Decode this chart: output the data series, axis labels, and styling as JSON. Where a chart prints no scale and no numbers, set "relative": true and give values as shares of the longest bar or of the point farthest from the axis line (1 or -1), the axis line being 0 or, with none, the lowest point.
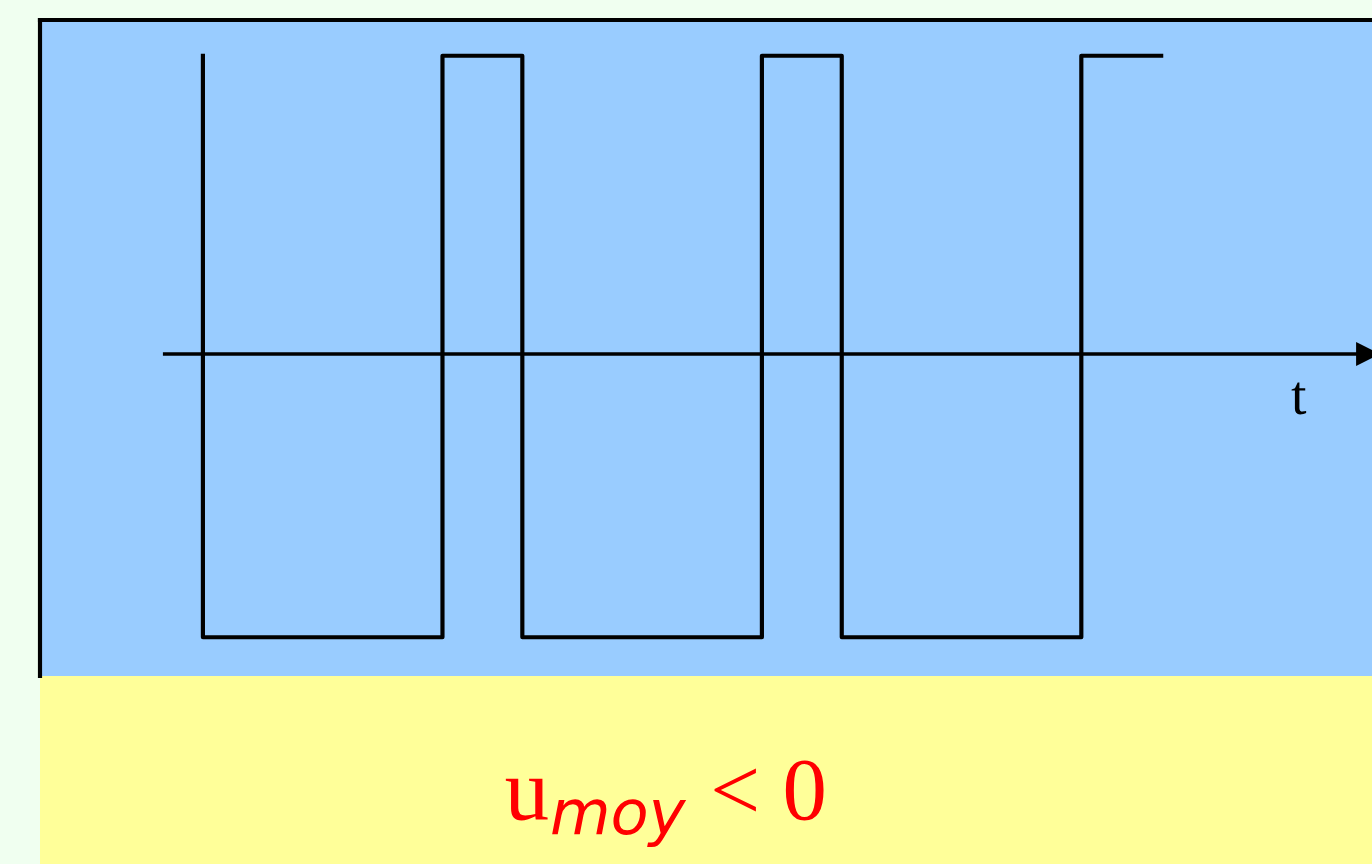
{
  "chart_data": {
    "type": "step",
    "relative": true,
    "xlabel": "t",
    "categories": [
      null,
      null,
      null,
      null,
      null,
      null,
      null,
      null,
      null,
      null,
      null,
      null,
      null
    ],
    "series": [
      {
        "color": "#000000",
        "values": [
          1,
          -0.95,
          -0.95,
          -0.95,
          1,
          -0.95,
          -0.95,
          -0.95,
          1,
          -0.95,
          -0.95,
          -0.95,
          1
        ]
      }
    ],
    "annotations": [
      "u$_{moy}$ < 0"
    ]
  }
}
